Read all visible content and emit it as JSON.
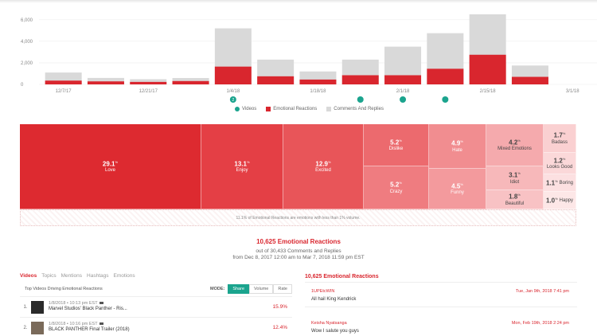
{
  "chart_data": {
    "type": "bar",
    "series": [
      {
        "name": "Emotional Reactions",
        "color": "#d9262e",
        "values": [
          350,
          280,
          230,
          310,
          1650,
          750,
          450,
          850,
          850,
          1450,
          2750,
          700,
          0
        ]
      },
      {
        "name": "Comments And Replies",
        "color": "#d9d9d9",
        "values": [
          1100,
          600,
          480,
          590,
          5200,
          2300,
          1200,
          2300,
          3500,
          4750,
          6500,
          1750,
          0
        ]
      }
    ],
    "video_markers": [
      {
        "slot": 4,
        "label": "2"
      },
      {
        "slot": 7,
        "label": ""
      },
      {
        "slot": 8,
        "label": ""
      },
      {
        "slot": 9,
        "label": ""
      }
    ],
    "x_ticks": [
      {
        "slot": 0,
        "label": "12/7/17"
      },
      {
        "slot": 2,
        "label": "12/21/17"
      },
      {
        "slot": 4,
        "label": "1/4/18"
      },
      {
        "slot": 6,
        "label": "1/18/18"
      },
      {
        "slot": 8,
        "label": "2/1/18"
      },
      {
        "slot": 10,
        "label": "2/15/18"
      },
      {
        "slot": 12,
        "label": "3/1/18"
      }
    ],
    "y_ticks": [
      "0",
      "2,000",
      "4,000",
      "6,000"
    ],
    "ylim": [
      0,
      6500
    ],
    "grid": true,
    "legend_position": "bottom"
  },
  "legend": {
    "videos": "Videos",
    "emotional": "Emotional Reactions",
    "comments": "Comments And Replies"
  },
  "treemap": {
    "cells": [
      {
        "pct": "29.1",
        "label": "Love"
      },
      {
        "pct": "13.1",
        "label": "Enjoy"
      },
      {
        "pct": "12.9",
        "label": "Excited"
      },
      {
        "pct": "5.2",
        "label": "Dislike"
      },
      {
        "pct": "5.2",
        "label": "Crazy"
      },
      {
        "pct": "4.9",
        "label": "Hate"
      },
      {
        "pct": "4.5",
        "label": "Funny"
      },
      {
        "pct": "4.2",
        "label": "Mixed Emotions"
      },
      {
        "pct": "3.1",
        "label": "Idiot"
      },
      {
        "pct": "1.8",
        "label": "Beautiful"
      },
      {
        "pct": "1.7",
        "label": "Badass"
      },
      {
        "pct": "1.2",
        "label": "Looks Good"
      },
      {
        "pct": "1.1",
        "label": "Boring"
      },
      {
        "pct": "1.0",
        "label": "Happy"
      }
    ],
    "footer": "11.1% of Emotional Reactions are emotions with less than 1% volume."
  },
  "summary": {
    "title": "10,625 Emotional Reactions",
    "line1": "out of 30,433 Comments and Replies",
    "line2": "from Dec 8, 2017 12:00 am to Mar 7, 2018 11:59 pm EST"
  },
  "tabs": [
    "Videos",
    "Topics",
    "Mentions",
    "Hashtags",
    "Emotions"
  ],
  "videos_panel": {
    "heading": "Top Videos Driving Emotional Reactions",
    "mode_label": "MODE:",
    "modes": [
      "Share",
      "Volume",
      "Rate"
    ],
    "rows": [
      {
        "index": "1.",
        "date": "1/8/2018 • 10:13 pm EST",
        "title": "Marvel Studios' Black Panther - Ris...",
        "score": "15.9%"
      },
      {
        "index": "2.",
        "date": "1/8/2018 • 10:16 pm EST",
        "title": "BLACK PANTHER Final Trailer (2018)",
        "score": "12.4%"
      }
    ]
  },
  "comments_panel": {
    "title": "10,625 Emotional Reactions",
    "comments": [
      {
        "user": "1UPEtcWIN",
        "date": "Tue, Jan 9th, 2018 7:41 pm",
        "text": "All hail King Kendrick"
      },
      {
        "user": "Keisha Nyatsanga",
        "date": "Mon, Feb 19th, 2018 2:24 pm",
        "text": "Wow I salute you guys"
      }
    ]
  }
}
